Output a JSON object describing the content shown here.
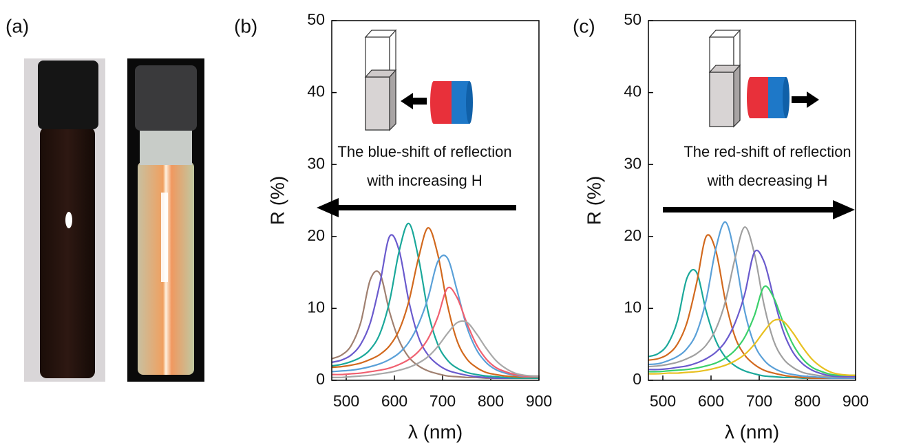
{
  "panel_a": {
    "label": "(a)"
  },
  "chart_data": [
    {
      "type": "line",
      "panel_label": "(b)",
      "xlabel": "λ (nm)",
      "ylabel": "R (%)",
      "annotation": [
        "The blue-shift of reflection",
        "with increasing H"
      ],
      "xlim": [
        470,
        900
      ],
      "ylim": [
        0,
        50
      ],
      "xticks": [
        500,
        600,
        700,
        800,
        900
      ],
      "yticks": [
        0,
        10,
        20,
        30,
        40,
        50
      ],
      "x": [
        470,
        490,
        510,
        530,
        550,
        570,
        590,
        610,
        630,
        650,
        670,
        690,
        710,
        730,
        750,
        770,
        790,
        810,
        830,
        850,
        870,
        890,
        900
      ],
      "series": [
        {
          "color": "#a08070",
          "values": [
            3.0,
            3.5,
            4.8,
            8,
            14,
            14.8,
            9.5,
            5.5,
            3.2,
            2.0,
            1.3,
            0.9,
            0.6,
            0.5,
            0.4,
            0.4,
            0.3,
            0.3,
            0.3,
            0.3,
            0.3,
            0.3,
            0.3
          ]
        },
        {
          "color": "#6a5acd",
          "values": [
            2.5,
            2.8,
            3.5,
            5,
            8,
            13.5,
            20,
            18,
            11,
            6,
            3.5,
            2.2,
            1.4,
            1.0,
            0.7,
            0.5,
            0.4,
            0.3,
            0.3,
            0.3,
            0.3,
            0.3,
            0.3
          ]
        },
        {
          "color": "#1aa89a",
          "values": [
            2,
            2.2,
            2.6,
            3.2,
            4.3,
            6.5,
            11,
            18,
            21.8,
            17,
            9.5,
            5,
            2.8,
            1.7,
            1.1,
            0.8,
            0.6,
            0.5,
            0.4,
            0.3,
            0.3,
            0.3,
            0.3
          ]
        },
        {
          "color": "#d2691e",
          "values": [
            1.8,
            1.9,
            2.1,
            2.4,
            2.9,
            3.6,
            4.8,
            7,
            11,
            17,
            21.2,
            17.5,
            10.5,
            5.5,
            3,
            1.8,
            1.1,
            0.8,
            0.6,
            0.5,
            0.4,
            0.4,
            0.4
          ]
        },
        {
          "color": "#5aa0d8",
          "values": [
            1.2,
            1.3,
            1.4,
            1.6,
            1.9,
            2.3,
            2.9,
            3.8,
            5.3,
            7.8,
            11.5,
            16.5,
            17,
            12.5,
            7.5,
            4.3,
            2.5,
            1.5,
            1.0,
            0.7,
            0.5,
            0.5,
            0.5
          ]
        },
        {
          "color": "#f06070",
          "values": [
            0.8,
            0.8,
            0.9,
            1.0,
            1.2,
            1.4,
            1.7,
            2.2,
            2.9,
            4.0,
            5.8,
            8.8,
            12.8,
            11.5,
            8,
            5,
            3,
            1.8,
            1.2,
            0.8,
            0.6,
            0.6,
            0.6
          ]
        },
        {
          "color": "#a8a8a8",
          "values": [
            0.4,
            0.4,
            0.5,
            0.6,
            0.7,
            0.9,
            1.1,
            1.4,
            1.8,
            2.4,
            3.3,
            4.7,
            6.5,
            8.0,
            8.1,
            6.5,
            4.5,
            2.8,
            1.7,
            1.0,
            0.7,
            0.6,
            0.6
          ]
        }
      ]
    },
    {
      "type": "line",
      "panel_label": "(c)",
      "xlabel": "λ (nm)",
      "ylabel": "R (%)",
      "annotation": [
        "The red-shift of reflection",
        "with decreasing H"
      ],
      "xlim": [
        470,
        900
      ],
      "ylim": [
        0,
        50
      ],
      "xticks": [
        500,
        600,
        700,
        800,
        900
      ],
      "yticks": [
        0,
        10,
        20,
        30,
        40,
        50
      ],
      "x": [
        470,
        490,
        510,
        530,
        550,
        570,
        590,
        610,
        630,
        650,
        670,
        690,
        710,
        730,
        750,
        770,
        790,
        810,
        830,
        850,
        870,
        890,
        900
      ],
      "series": [
        {
          "color": "#1aa89a",
          "values": [
            3.3,
            3.7,
            5,
            8.2,
            14.2,
            15,
            9.6,
            5.5,
            3.2,
            2.0,
            1.3,
            0.9,
            0.6,
            0.5,
            0.4,
            0.4,
            0.3,
            0.3,
            0.3,
            0.3,
            0.3,
            0.3,
            0.3
          ]
        },
        {
          "color": "#d2691e",
          "values": [
            2.8,
            3.0,
            3.6,
            5,
            8,
            13.5,
            20,
            18,
            11,
            6,
            3.5,
            2.2,
            1.4,
            1.0,
            0.7,
            0.5,
            0.4,
            0.3,
            0.3,
            0.3,
            0.3,
            0.3,
            0.3
          ]
        },
        {
          "color": "#5aa0d8",
          "values": [
            2.2,
            2.3,
            2.7,
            3.3,
            4.4,
            6.6,
            11.2,
            18.3,
            22,
            17.2,
            9.6,
            5,
            2.8,
            1.7,
            1.1,
            0.8,
            0.6,
            0.5,
            0.4,
            0.3,
            0.3,
            0.3,
            0.3
          ]
        },
        {
          "color": "#a0a0a0",
          "values": [
            1.9,
            2.0,
            2.2,
            2.5,
            3.0,
            3.7,
            4.9,
            7.1,
            11,
            17,
            21.3,
            17.6,
            10.5,
            5.5,
            3,
            1.8,
            1.1,
            0.8,
            0.6,
            0.5,
            0.4,
            0.4,
            0.4
          ]
        },
        {
          "color": "#6a5acd",
          "values": [
            1.5,
            1.5,
            1.6,
            1.8,
            2.0,
            2.4,
            3.0,
            3.9,
            5.4,
            8,
            12,
            17.8,
            16.5,
            11.5,
            6.8,
            3.9,
            2.3,
            1.4,
            0.9,
            0.6,
            0.5,
            0.5,
            0.5
          ]
        },
        {
          "color": "#3ad06a",
          "values": [
            1.2,
            1.2,
            1.3,
            1.4,
            1.5,
            1.7,
            2.0,
            2.4,
            3.1,
            4.2,
            6.0,
            9.0,
            13,
            11.5,
            8,
            5,
            3,
            1.8,
            1.2,
            0.8,
            0.7,
            0.7,
            0.7
          ]
        },
        {
          "color": "#e8c020",
          "values": [
            0.9,
            0.9,
            1.0,
            1.0,
            1.1,
            1.2,
            1.4,
            1.7,
            2.1,
            2.7,
            3.6,
            5,
            6.8,
            8.3,
            8.2,
            6.6,
            4.6,
            2.9,
            1.8,
            1.1,
            0.8,
            0.7,
            0.7
          ]
        }
      ]
    }
  ]
}
